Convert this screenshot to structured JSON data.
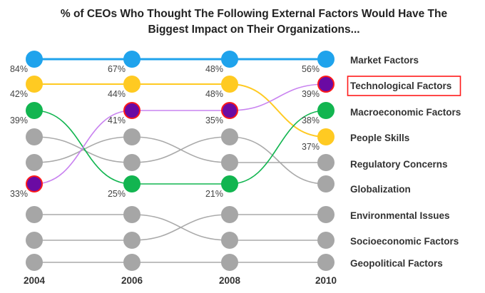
{
  "chart_data": {
    "type": "line",
    "subtype": "bump",
    "title_lines": [
      "% of CEOs Who Thought The Following External Factors Would Have The",
      "Biggest Impact on Their Organizations..."
    ],
    "xlabel": "",
    "ylabel": "",
    "x": [
      "2004",
      "2006",
      "2008",
      "2010"
    ],
    "y_meaning": "rank (1 = top)",
    "highlighted_series": "Technological Factors",
    "highlight_color": "#ff1a1a",
    "grid": false,
    "legend_placement": "right",
    "series": [
      {
        "name": "Market Factors",
        "ranks": [
          1,
          1,
          1,
          1
        ],
        "values": [
          84,
          67,
          48,
          56
        ],
        "color": "#1fa3ec",
        "line_color": "#1fa3ec"
      },
      {
        "name": "Technological Factors",
        "ranks": [
          6,
          3,
          3,
          2
        ],
        "values": [
          33,
          41,
          35,
          39
        ],
        "color": "#6a0aa3",
        "line_color": "#c983f0",
        "outline_color": "#ff1a1a"
      },
      {
        "name": "Macroeconomic Factors",
        "ranks": [
          3,
          6,
          6,
          3
        ],
        "values": [
          39,
          25,
          21,
          38
        ],
        "color": "#12b550",
        "line_color": "#12b550"
      },
      {
        "name": "People Skills",
        "ranks": [
          2,
          2,
          2,
          4
        ],
        "values": [
          42,
          44,
          48,
          37
        ],
        "color": "#ffca22",
        "line_color": "#ffca22"
      },
      {
        "name": "Regulatory Concerns",
        "ranks": [
          5,
          4,
          5,
          5
        ],
        "values": [
          null,
          null,
          null,
          null
        ],
        "color": "#a6a6a6",
        "line_color": "#aaaaaa"
      },
      {
        "name": "Globalization",
        "ranks": [
          4,
          5,
          4,
          6
        ],
        "values": [
          null,
          null,
          null,
          null
        ],
        "color": "#a6a6a6",
        "line_color": "#aaaaaa"
      },
      {
        "name": "Environmental Issues",
        "ranks": [
          8,
          8,
          7,
          7
        ],
        "values": [
          null,
          null,
          null,
          null
        ],
        "color": "#a6a6a6",
        "line_color": "#aaaaaa"
      },
      {
        "name": "Socioeconomic Factors",
        "ranks": [
          7,
          7,
          8,
          8
        ],
        "values": [
          null,
          null,
          null,
          null
        ],
        "color": "#a6a6a6",
        "line_color": "#aaaaaa"
      },
      {
        "name": "Geopolitical Factors",
        "ranks": [
          9,
          9,
          9,
          9
        ],
        "values": [
          null,
          null,
          null,
          null
        ],
        "color": "#a6a6a6",
        "line_color": "#aaaaaa"
      }
    ],
    "legend": [
      "Market Factors",
      "Technological Factors",
      "Macroeconomic Factors",
      "People Skills",
      "Regulatory Concerns",
      "Globalization",
      "Environmental Issues",
      "Socioeconomic Factors",
      "Geopolitical Factors"
    ]
  }
}
